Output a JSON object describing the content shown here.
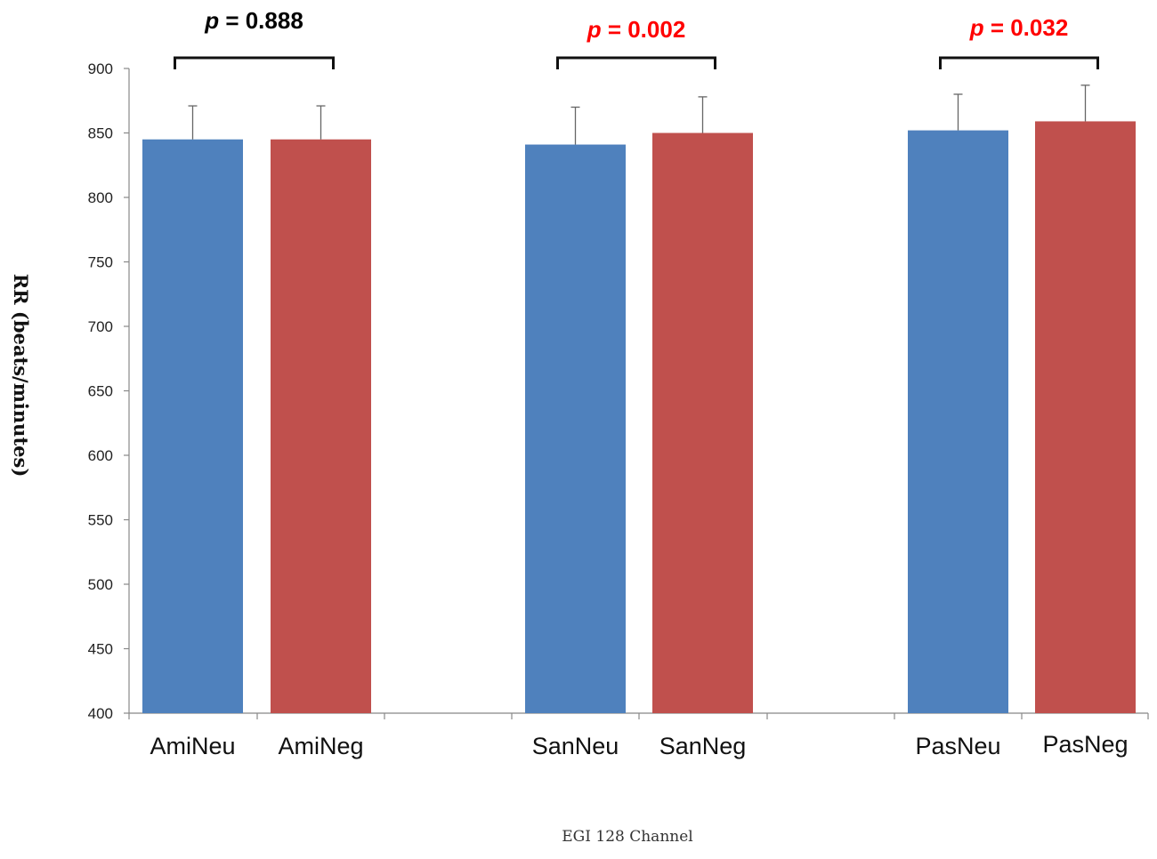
{
  "chart_data": {
    "type": "bar",
    "categories": [
      "AmiNeu",
      "AmiNeg",
      "SanNeu",
      "SanNeg",
      "PasNeu",
      "PasNeg"
    ],
    "values": [
      845,
      845,
      841,
      850,
      852,
      859
    ],
    "errors": [
      26,
      26,
      29,
      28,
      28,
      28
    ],
    "bar_colors": [
      "#4f81bd",
      "#c0504d",
      "#4f81bd",
      "#c0504d",
      "#4f81bd",
      "#c0504d"
    ],
    "ylabel": "RR (beats/minutes)",
    "xlabel": "EGI 128 Channel",
    "ylim": [
      400,
      900
    ],
    "yticks": [
      400,
      450,
      500,
      550,
      600,
      650,
      700,
      750,
      800,
      850,
      900
    ],
    "grid": false,
    "comparisons": [
      {
        "pair": [
          "AmiNeu",
          "AmiNeg"
        ],
        "p_symbol": "p",
        "p_text": " = 0.888",
        "color": "#000000"
      },
      {
        "pair": [
          "SanNeu",
          "SanNeg"
        ],
        "p_symbol": "p",
        "p_text": " = 0.002",
        "color": "#ff0000"
      },
      {
        "pair": [
          "PasNeu",
          "PasNeg"
        ],
        "p_symbol": "p",
        "p_text": " = 0.032",
        "color": "#ff0000"
      }
    ]
  }
}
